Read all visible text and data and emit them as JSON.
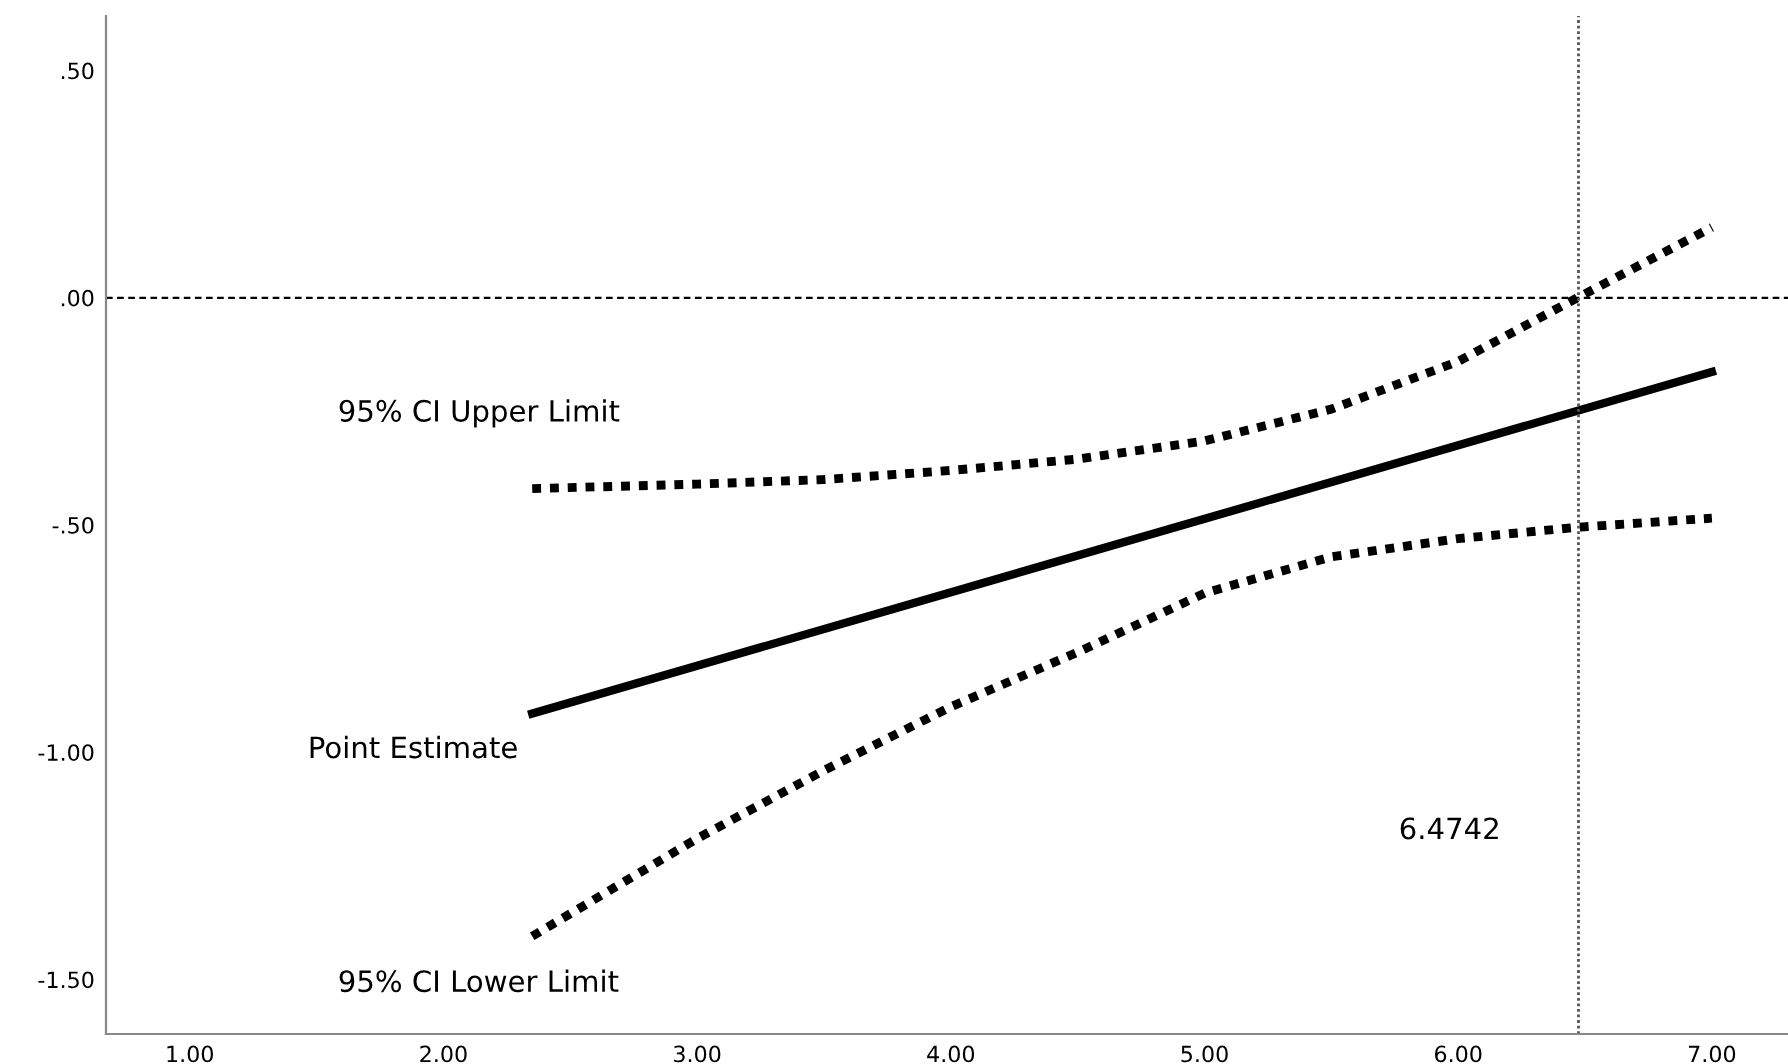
{
  "chart_data": {
    "type": "line",
    "xlim": [
      0.67,
      7.3
    ],
    "ylim": [
      -1.62,
      0.62
    ],
    "xticks": [
      {
        "value": 1,
        "label": "1.00"
      },
      {
        "value": 2,
        "label": "2.00"
      },
      {
        "value": 3,
        "label": "3.00"
      },
      {
        "value": 4,
        "label": "4.00"
      },
      {
        "value": 5,
        "label": "5.00"
      },
      {
        "value": 6,
        "label": "6.00"
      },
      {
        "value": 7,
        "label": "7.00"
      }
    ],
    "yticks": [
      {
        "value": -1.5,
        "label": "-1.50"
      },
      {
        "value": -1.0,
        "label": "-1.00"
      },
      {
        "value": -0.5,
        "label": "-.50"
      },
      {
        "value": 0,
        "label": ".00"
      },
      {
        "value": 0.5,
        "label": ".50"
      }
    ],
    "grid": false,
    "legend": false,
    "series": [
      {
        "name": "95% CI Upper Limit",
        "color": "#000000",
        "line_style": "dotted",
        "x": [
          2.35,
          3.0,
          3.5,
          4.0,
          4.5,
          5.0,
          5.5,
          6.0,
          6.47,
          7.0
        ],
        "values": [
          -0.42,
          -0.41,
          -0.4,
          -0.38,
          -0.355,
          -0.315,
          -0.245,
          -0.14,
          0.0,
          0.155
        ]
      },
      {
        "name": "Point Estimate",
        "color": "#000000",
        "line_style": "solid",
        "x": [
          2.35,
          7.0
        ],
        "values": [
          -0.915,
          -0.163
        ]
      },
      {
        "name": "95% CI Lower Limit",
        "color": "#000000",
        "line_style": "dotted",
        "x": [
          2.35,
          3.0,
          3.5,
          4.0,
          4.5,
          5.0,
          5.5,
          6.0,
          6.47,
          7.0
        ],
        "values": [
          -1.405,
          -1.19,
          -1.04,
          -0.9,
          -0.78,
          -0.65,
          -0.57,
          -0.53,
          -0.505,
          -0.485
        ]
      }
    ],
    "ref_lines": [
      {
        "axis": "y",
        "value": 0,
        "label": null,
        "color": "#000000",
        "line_style": "dashed"
      },
      {
        "axis": "x",
        "value": 6.4742,
        "label": "6.4742",
        "color": "#555555",
        "line_style": "dotted"
      }
    ]
  }
}
